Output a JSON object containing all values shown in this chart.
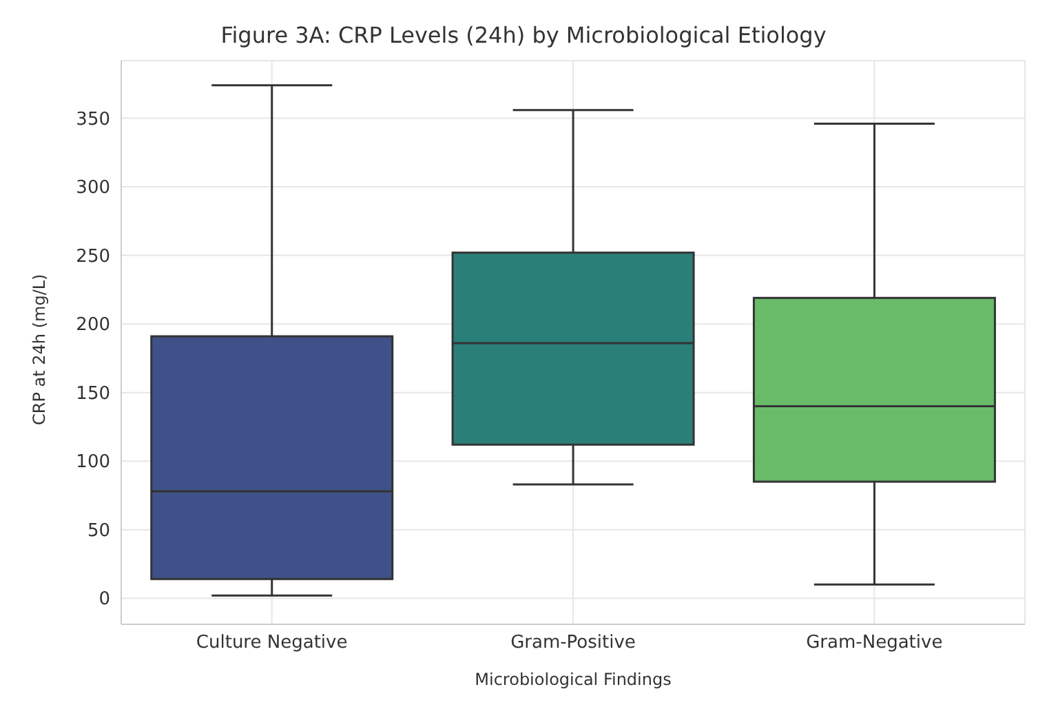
{
  "chart_data": {
    "type": "box",
    "title": "Figure 3A: CRP Levels (24h) by Microbiological Etiology",
    "xlabel": "Microbiological Findings",
    "ylabel": "CRP at 24h (mg/L)",
    "categories": [
      "Culture Negative",
      "Gram-Positive",
      "Gram-Negative"
    ],
    "colors": [
      "#3f5188",
      "#2a8078",
      "#69bb69"
    ],
    "boxes": [
      {
        "low": 2,
        "q1": 14,
        "median": 78,
        "q3": 191,
        "high": 374
      },
      {
        "low": 83,
        "q1": 112,
        "median": 186,
        "q3": 252,
        "high": 356
      },
      {
        "low": 10,
        "q1": 85,
        "median": 140,
        "q3": 219,
        "high": 346
      }
    ],
    "ylim": [
      -19,
      392
    ],
    "yticks": [
      0,
      50,
      100,
      150,
      200,
      250,
      300,
      350
    ],
    "grid": true
  }
}
